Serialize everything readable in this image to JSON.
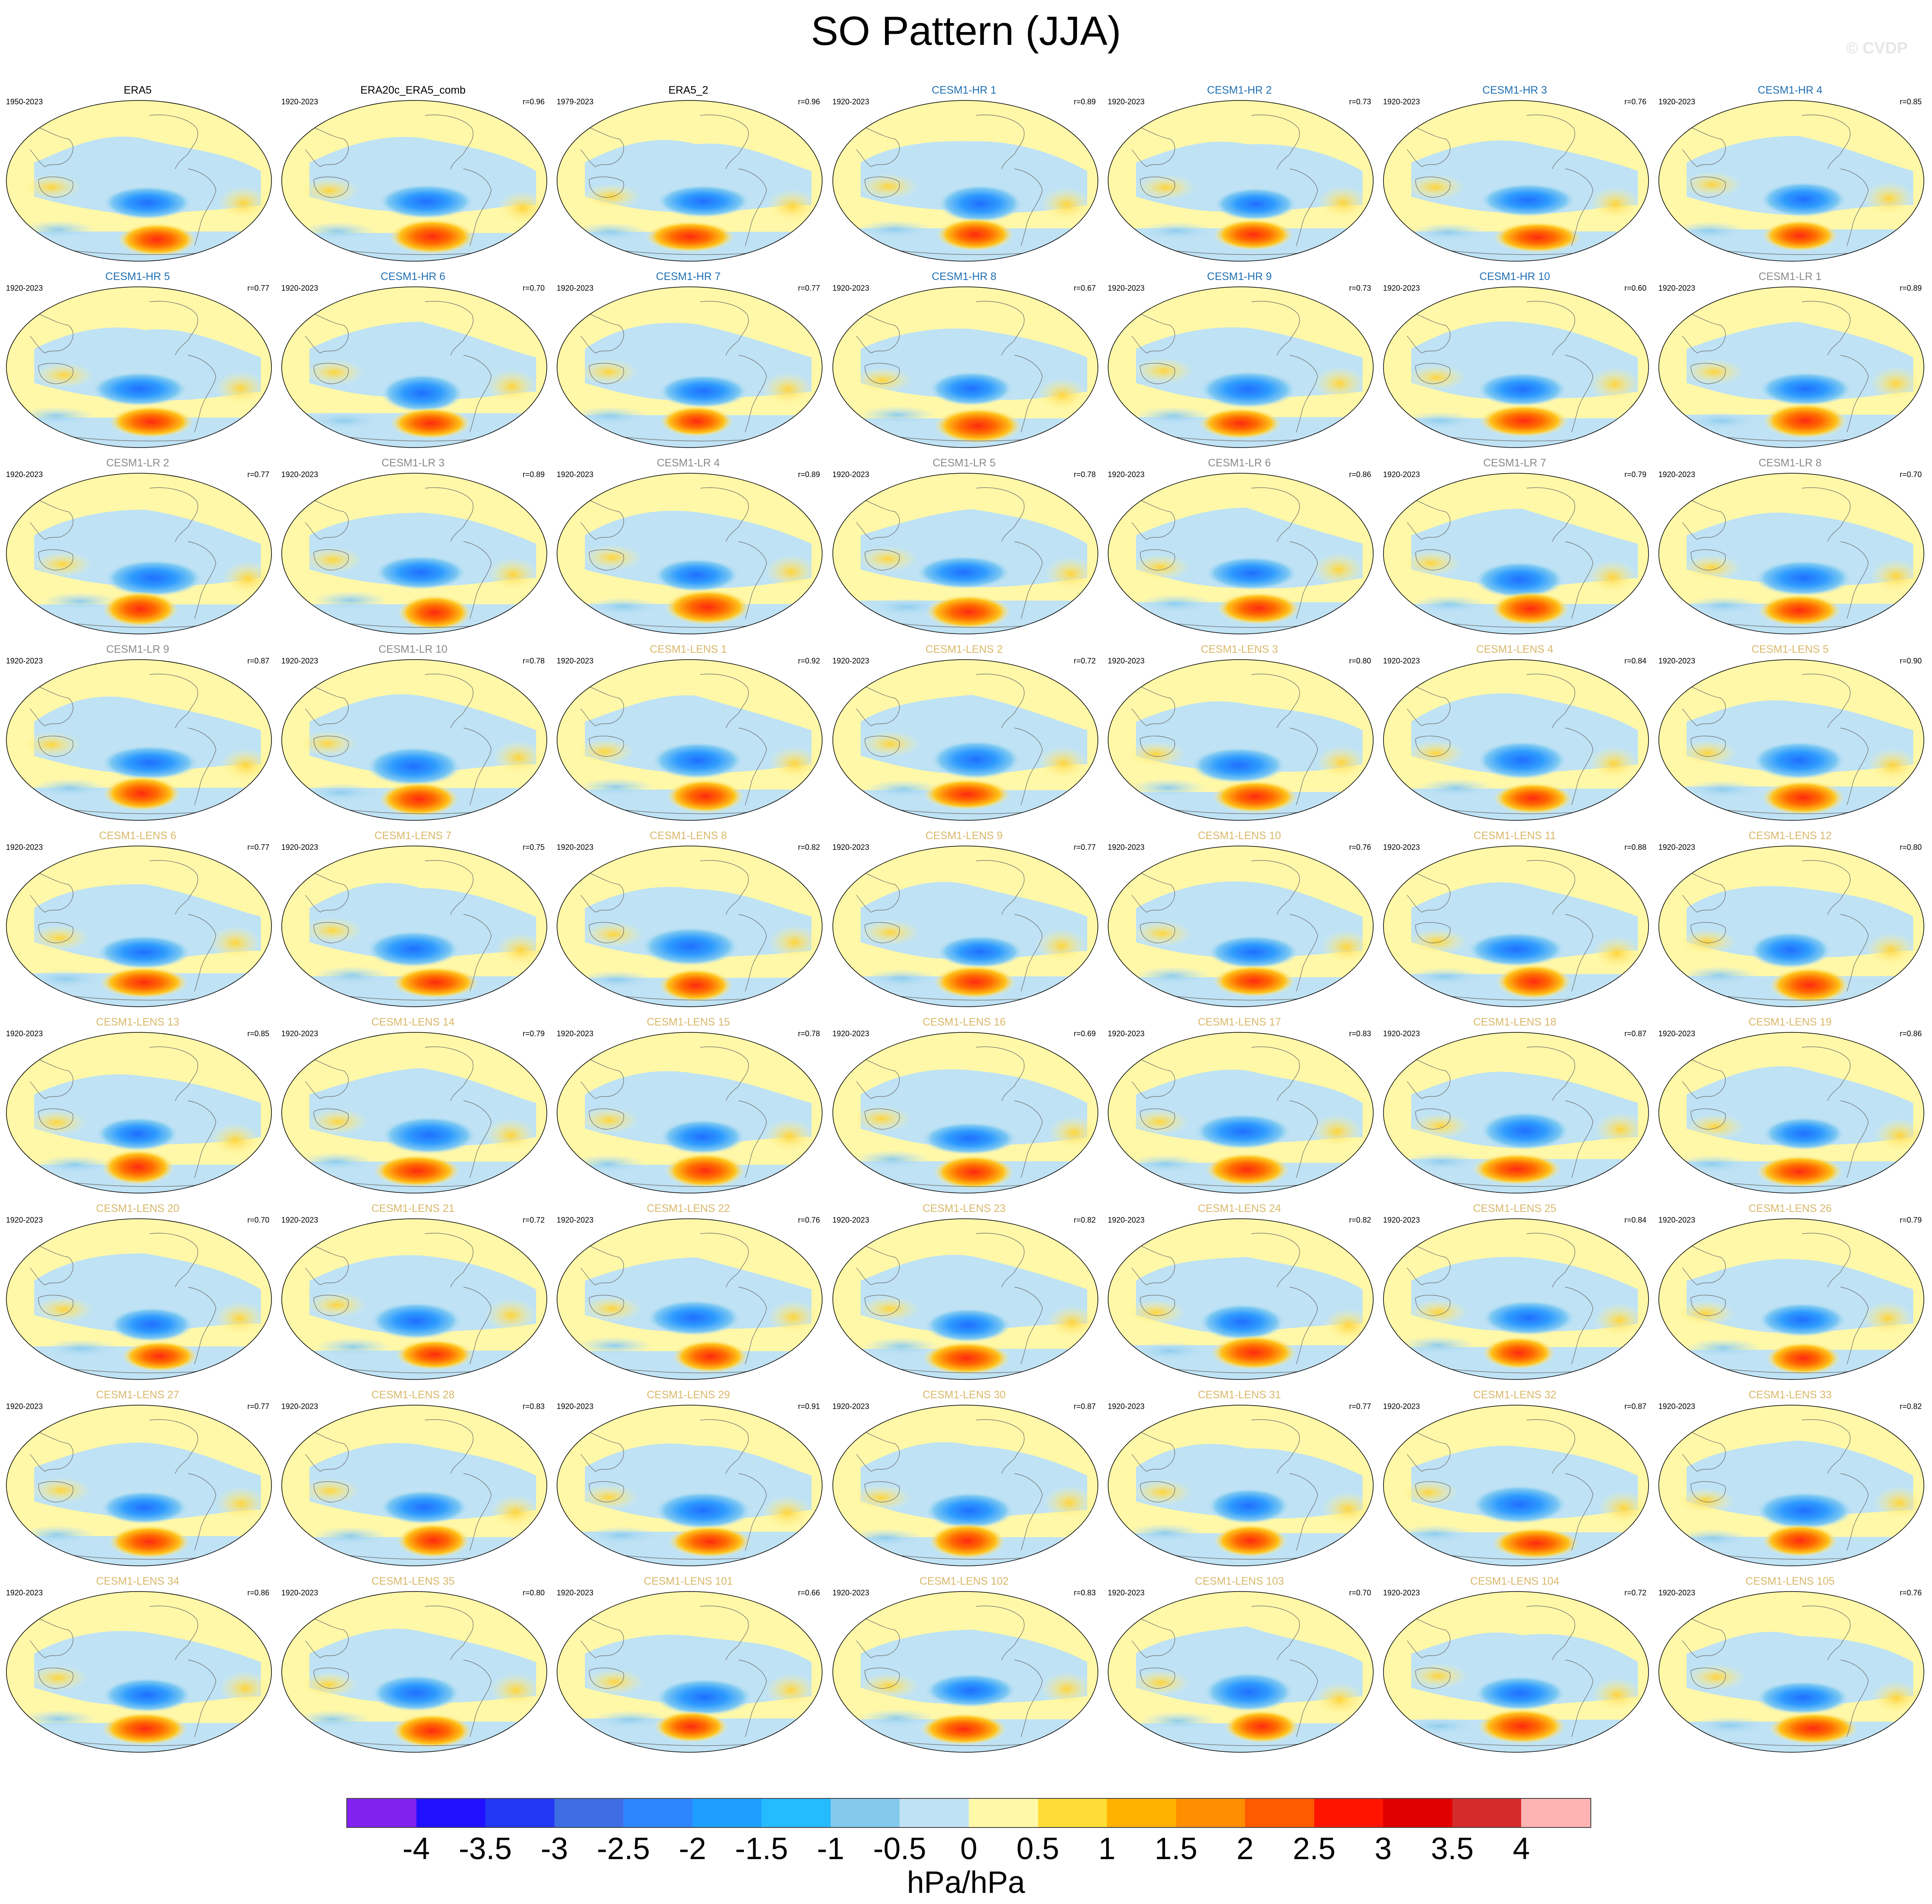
{
  "figure": {
    "title": "SO Pattern (JJA)",
    "watermark": "© CVDP",
    "units": "hPa/hPa"
  },
  "colors": {
    "ocean_base": "#bfe2f4",
    "land_fill": "#fff8a8",
    "blue_strong": "#1f8bff",
    "blue_mid": "#3aa6ff",
    "red_core": "#ff3b1a",
    "orange": "#ff9a00",
    "yellow": "#ffd93a",
    "heritage_title": "#000000",
    "hr_title": "#1f6fb3",
    "lr_title": "#8a8a8a",
    "lens_title": "#d9b86a"
  },
  "panels": [
    {
      "title": "ERA5",
      "years": "1950-2023",
      "r": "",
      "group": "obs"
    },
    {
      "title": "ERA20c_ERA5_comb",
      "years": "1920-2023",
      "r": "r=0.96",
      "group": "obs"
    },
    {
      "title": "ERA5_2",
      "years": "1979-2023",
      "r": "r=0.96",
      "group": "obs"
    },
    {
      "title": "CESM1-HR 1",
      "years": "1920-2023",
      "r": "r=0.89",
      "group": "hr"
    },
    {
      "title": "CESM1-HR 2",
      "years": "1920-2023",
      "r": "r=0.73",
      "group": "hr"
    },
    {
      "title": "CESM1-HR 3",
      "years": "1920-2023",
      "r": "r=0.76",
      "group": "hr"
    },
    {
      "title": "CESM1-HR 4",
      "years": "1920-2023",
      "r": "r=0.85",
      "group": "hr"
    },
    {
      "title": "CESM1-HR 5",
      "years": "1920-2023",
      "r": "r=0.77",
      "group": "hr"
    },
    {
      "title": "CESM1-HR 6",
      "years": "1920-2023",
      "r": "r=0.70",
      "group": "hr"
    },
    {
      "title": "CESM1-HR 7",
      "years": "1920-2023",
      "r": "r=0.77",
      "group": "hr"
    },
    {
      "title": "CESM1-HR 8",
      "years": "1920-2023",
      "r": "r=0.67",
      "group": "hr"
    },
    {
      "title": "CESM1-HR 9",
      "years": "1920-2023",
      "r": "r=0.73",
      "group": "hr"
    },
    {
      "title": "CESM1-HR 10",
      "years": "1920-2023",
      "r": "r=0.60",
      "group": "hr"
    },
    {
      "title": "CESM1-LR 1",
      "years": "1920-2023",
      "r": "r=0.89",
      "group": "lr"
    },
    {
      "title": "CESM1-LR 2",
      "years": "1920-2023",
      "r": "r=0.77",
      "group": "lr"
    },
    {
      "title": "CESM1-LR 3",
      "years": "1920-2023",
      "r": "r=0.89",
      "group": "lr"
    },
    {
      "title": "CESM1-LR 4",
      "years": "1920-2023",
      "r": "r=0.89",
      "group": "lr"
    },
    {
      "title": "CESM1-LR 5",
      "years": "1920-2023",
      "r": "r=0.78",
      "group": "lr"
    },
    {
      "title": "CESM1-LR 6",
      "years": "1920-2023",
      "r": "r=0.86",
      "group": "lr"
    },
    {
      "title": "CESM1-LR 7",
      "years": "1920-2023",
      "r": "r=0.79",
      "group": "lr"
    },
    {
      "title": "CESM1-LR 8",
      "years": "1920-2023",
      "r": "r=0.70",
      "group": "lr"
    },
    {
      "title": "CESM1-LR 9",
      "years": "1920-2023",
      "r": "r=0.87",
      "group": "lr"
    },
    {
      "title": "CESM1-LR 10",
      "years": "1920-2023",
      "r": "r=0.78",
      "group": "lr"
    },
    {
      "title": "CESM1-LENS 1",
      "years": "1920-2023",
      "r": "r=0.92",
      "group": "lens"
    },
    {
      "title": "CESM1-LENS 2",
      "years": "1920-2023",
      "r": "r=0.72",
      "group": "lens"
    },
    {
      "title": "CESM1-LENS 3",
      "years": "1920-2023",
      "r": "r=0.80",
      "group": "lens"
    },
    {
      "title": "CESM1-LENS 4",
      "years": "1920-2023",
      "r": "r=0.84",
      "group": "lens"
    },
    {
      "title": "CESM1-LENS 5",
      "years": "1920-2023",
      "r": "r=0.90",
      "group": "lens"
    },
    {
      "title": "CESM1-LENS 6",
      "years": "1920-2023",
      "r": "r=0.77",
      "group": "lens"
    },
    {
      "title": "CESM1-LENS 7",
      "years": "1920-2023",
      "r": "r=0.75",
      "group": "lens"
    },
    {
      "title": "CESM1-LENS 8",
      "years": "1920-2023",
      "r": "r=0.82",
      "group": "lens"
    },
    {
      "title": "CESM1-LENS 9",
      "years": "1920-2023",
      "r": "r=0.77",
      "group": "lens"
    },
    {
      "title": "CESM1-LENS 10",
      "years": "1920-2023",
      "r": "r=0.76",
      "group": "lens"
    },
    {
      "title": "CESM1-LENS 11",
      "years": "1920-2023",
      "r": "r=0.88",
      "group": "lens"
    },
    {
      "title": "CESM1-LENS 12",
      "years": "1920-2023",
      "r": "r=0.80",
      "group": "lens"
    },
    {
      "title": "CESM1-LENS 13",
      "years": "1920-2023",
      "r": "r=0.85",
      "group": "lens"
    },
    {
      "title": "CESM1-LENS 14",
      "years": "1920-2023",
      "r": "r=0.79",
      "group": "lens"
    },
    {
      "title": "CESM1-LENS 15",
      "years": "1920-2023",
      "r": "r=0.78",
      "group": "lens"
    },
    {
      "title": "CESM1-LENS 16",
      "years": "1920-2023",
      "r": "r=0.69",
      "group": "lens"
    },
    {
      "title": "CESM1-LENS 17",
      "years": "1920-2023",
      "r": "r=0.83",
      "group": "lens"
    },
    {
      "title": "CESM1-LENS 18",
      "years": "1920-2023",
      "r": "r=0.87",
      "group": "lens"
    },
    {
      "title": "CESM1-LENS 19",
      "years": "1920-2023",
      "r": "r=0.86",
      "group": "lens"
    },
    {
      "title": "CESM1-LENS 20",
      "years": "1920-2023",
      "r": "r=0.70",
      "group": "lens"
    },
    {
      "title": "CESM1-LENS 21",
      "years": "1920-2023",
      "r": "r=0.72",
      "group": "lens"
    },
    {
      "title": "CESM1-LENS 22",
      "years": "1920-2023",
      "r": "r=0.76",
      "group": "lens"
    },
    {
      "title": "CESM1-LENS 23",
      "years": "1920-2023",
      "r": "r=0.82",
      "group": "lens"
    },
    {
      "title": "CESM1-LENS 24",
      "years": "1920-2023",
      "r": "r=0.82",
      "group": "lens"
    },
    {
      "title": "CESM1-LENS 25",
      "years": "1920-2023",
      "r": "r=0.84",
      "group": "lens"
    },
    {
      "title": "CESM1-LENS 26",
      "years": "1920-2023",
      "r": "r=0.79",
      "group": "lens"
    },
    {
      "title": "CESM1-LENS 27",
      "years": "1920-2023",
      "r": "r=0.77",
      "group": "lens"
    },
    {
      "title": "CESM1-LENS 28",
      "years": "1920-2023",
      "r": "r=0.83",
      "group": "lens"
    },
    {
      "title": "CESM1-LENS 29",
      "years": "1920-2023",
      "r": "r=0.91",
      "group": "lens"
    },
    {
      "title": "CESM1-LENS 30",
      "years": "1920-2023",
      "r": "r=0.87",
      "group": "lens"
    },
    {
      "title": "CESM1-LENS 31",
      "years": "1920-2023",
      "r": "r=0.77",
      "group": "lens"
    },
    {
      "title": "CESM1-LENS 32",
      "years": "1920-2023",
      "r": "r=0.87",
      "group": "lens"
    },
    {
      "title": "CESM1-LENS 33",
      "years": "1920-2023",
      "r": "r=0.82",
      "group": "lens"
    },
    {
      "title": "CESM1-LENS 34",
      "years": "1920-2023",
      "r": "r=0.86",
      "group": "lens"
    },
    {
      "title": "CESM1-LENS 35",
      "years": "1920-2023",
      "r": "r=0.80",
      "group": "lens"
    },
    {
      "title": "CESM1-LENS 101",
      "years": "1920-2023",
      "r": "r=0.66",
      "group": "lens"
    },
    {
      "title": "CESM1-LENS 102",
      "years": "1920-2023",
      "r": "r=0.83",
      "group": "lens"
    },
    {
      "title": "CESM1-LENS 103",
      "years": "1920-2023",
      "r": "r=0.70",
      "group": "lens"
    },
    {
      "title": "CESM1-LENS 104",
      "years": "1920-2023",
      "r": "r=0.72",
      "group": "lens"
    },
    {
      "title": "CESM1-LENS 105",
      "years": "1920-2023",
      "r": "r=0.76",
      "group": "lens"
    }
  ],
  "colorbar": {
    "labels": [
      "-4",
      "-3.5",
      "-3",
      "-2.5",
      "-2",
      "-1.5",
      "-1",
      "-0.5",
      "0",
      "0.5",
      "1",
      "1.5",
      "2",
      "2.5",
      "3",
      "3.5",
      "4"
    ],
    "colors": [
      "#8122ef",
      "#2010ff",
      "#2238f3",
      "#3f6ee4",
      "#2e86ff",
      "#1e9fff",
      "#25bbff",
      "#84c9ee",
      "#bfe2f4",
      "#fff8a8",
      "#ffdc37",
      "#ffb300",
      "#ff8e00",
      "#ff5a00",
      "#ff1400",
      "#e00000",
      "#d42b2b",
      "#ffb3b3"
    ]
  }
}
